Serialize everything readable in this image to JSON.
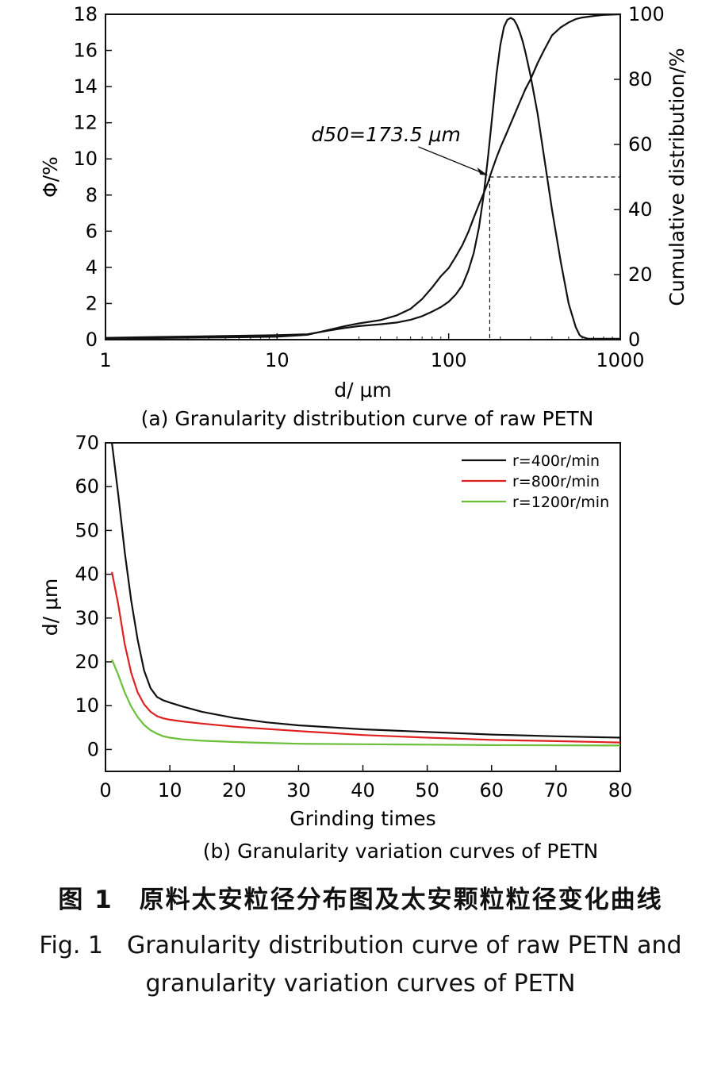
{
  "chart_data": [
    {
      "type": "line",
      "panel_label": "(a) Granularity distribution curve of raw PETN",
      "xlabel": "d/ μm",
      "ylabel": "Φ/%",
      "y2label": "Cumulative distribution/%",
      "xscale": "log",
      "xlim": [
        1,
        1000
      ],
      "ylim": [
        0,
        18
      ],
      "y2lim": [
        0,
        100
      ],
      "x_ticks": [
        "1",
        "10",
        "100",
        "1000"
      ],
      "y_ticks": [
        "0",
        "2",
        "4",
        "6",
        "8",
        "10",
        "12",
        "14",
        "16",
        "18"
      ],
      "y2_ticks": [
        "0",
        "20",
        "40",
        "60",
        "80",
        "100"
      ],
      "annotation": {
        "label": "d50=173.5 μm",
        "x": 173.5,
        "y2": 50
      },
      "grid": false,
      "series": [
        {
          "axis": "left",
          "color": "#111111",
          "x": [
            1,
            2,
            5,
            10,
            15,
            20,
            25,
            30,
            40,
            50,
            60,
            70,
            80,
            90,
            100,
            110,
            120,
            130,
            140,
            150,
            160,
            170,
            180,
            190,
            200,
            210,
            220,
            230,
            240,
            250,
            260,
            270,
            280,
            300,
            330,
            360,
            400,
            450,
            500,
            550,
            580,
            600,
            650,
            700,
            800,
            900,
            1000
          ],
          "values": [
            0.1,
            0.15,
            0.2,
            0.25,
            0.3,
            0.5,
            0.65,
            0.75,
            0.85,
            0.95,
            1.1,
            1.3,
            1.55,
            1.8,
            2.1,
            2.5,
            3.0,
            3.8,
            4.8,
            6.2,
            8.0,
            10.2,
            12.5,
            14.7,
            16.3,
            17.3,
            17.7,
            17.8,
            17.7,
            17.4,
            17.0,
            16.5,
            15.9,
            14.6,
            12.5,
            10.1,
            7.2,
            4.3,
            2.0,
            0.7,
            0.25,
            0.15,
            0.05,
            0.05,
            0.05,
            0.05,
            0.05
          ]
        },
        {
          "axis": "right",
          "color": "#111111",
          "x": [
            1,
            2,
            5,
            10,
            15,
            20,
            25,
            30,
            40,
            50,
            60,
            70,
            80,
            90,
            100,
            110,
            120,
            130,
            140,
            150,
            160,
            170,
            173.5,
            180,
            190,
            200,
            220,
            250,
            280,
            300,
            330,
            360,
            400,
            450,
            500,
            550,
            600,
            700,
            800,
            900,
            1000
          ],
          "values": [
            0.3,
            0.5,
            0.7,
            0.9,
            1.5,
            3.0,
            4.2,
            5.0,
            6.0,
            7.5,
            9.5,
            12.5,
            16.0,
            19.5,
            22.0,
            25.5,
            29.0,
            33.0,
            37.5,
            41.5,
            45.0,
            48.5,
            50.0,
            52.5,
            56.0,
            59.0,
            64.0,
            71.0,
            77.0,
            80.0,
            85.0,
            89.0,
            93.5,
            96.0,
            97.5,
            98.5,
            99.0,
            99.5,
            99.8,
            99.9,
            100.0
          ]
        }
      ]
    },
    {
      "type": "line",
      "panel_label": "(b) Granularity variation curves of PETN",
      "xlabel": "Grinding times",
      "ylabel": "d/ μm",
      "xlim": [
        0,
        80
      ],
      "ylim": [
        -5,
        70
      ],
      "x_ticks": [
        0,
        10,
        20,
        30,
        40,
        50,
        60,
        70,
        80
      ],
      "y_ticks": [
        0,
        10,
        20,
        30,
        40,
        50,
        60,
        70
      ],
      "legend_position": "top-right",
      "grid": false,
      "series": [
        {
          "name": "r=400r/min",
          "color": "#111111",
          "x": [
            1,
            2,
            3,
            4,
            5,
            6,
            7,
            8,
            9,
            10,
            12,
            15,
            20,
            25,
            30,
            40,
            50,
            60,
            70,
            80
          ],
          "values": [
            70,
            58,
            45,
            34,
            25,
            18,
            14,
            12,
            11.2,
            10.7,
            9.8,
            8.6,
            7.2,
            6.2,
            5.5,
            4.6,
            4.0,
            3.4,
            3.0,
            2.7
          ]
        },
        {
          "name": "r=800r/min",
          "color": "#e02020",
          "x": [
            1,
            2,
            3,
            4,
            5,
            6,
            7,
            8,
            9,
            10,
            12,
            15,
            20,
            25,
            30,
            40,
            50,
            60,
            70,
            80
          ],
          "values": [
            40.5,
            33,
            24,
            17.5,
            13,
            10.3,
            8.6,
            7.6,
            7.1,
            6.8,
            6.4,
            5.9,
            5.2,
            4.7,
            4.2,
            3.3,
            2.7,
            2.2,
            1.9,
            1.6
          ]
        },
        {
          "name": "r=1200r/min",
          "color": "#6bbf3a",
          "x": [
            1,
            2,
            3,
            4,
            5,
            6,
            7,
            8,
            9,
            10,
            12,
            15,
            20,
            25,
            30,
            40,
            50,
            60,
            70,
            80
          ],
          "values": [
            20.5,
            17,
            13,
            9.8,
            7.4,
            5.6,
            4.4,
            3.6,
            3.0,
            2.7,
            2.3,
            2.0,
            1.7,
            1.5,
            1.3,
            1.2,
            1.1,
            1.0,
            0.95,
            0.9
          ]
        }
      ]
    }
  ],
  "captions": {
    "cn": "图 1　原料太安粒径分布图及太安颗粒粒径变化曲线",
    "en_line1": "Fig. 1　Granularity distribution curve of raw PETN and",
    "en_line2": "granularity variation curves of PETN"
  }
}
